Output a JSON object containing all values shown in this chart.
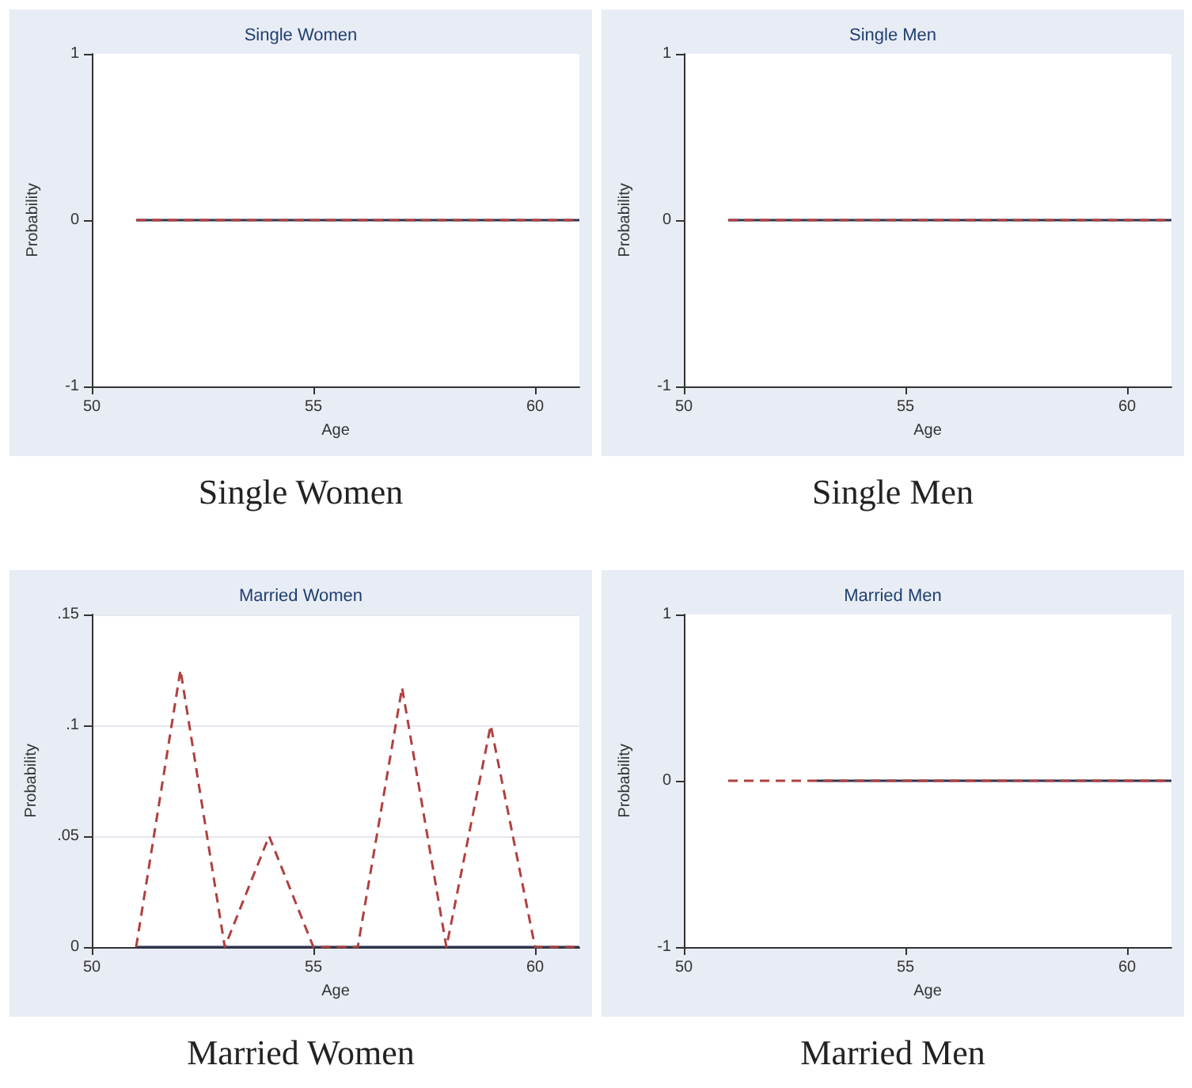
{
  "chart_data": [
    {
      "type": "line",
      "title": "Single Women",
      "xlabel": "Age",
      "ylabel": "Probability",
      "x": [
        51,
        52,
        53,
        54,
        55,
        56,
        57,
        58,
        59,
        60,
        61
      ],
      "xlim": [
        50,
        61
      ],
      "xticks": [
        50,
        55,
        60
      ],
      "ylim": [
        -1,
        1
      ],
      "yticks": [
        -1,
        0,
        1
      ],
      "grid": false,
      "annotations": [
        "Single Women"
      ],
      "series": [
        {
          "color": "#2b3550",
          "line_style": "solid",
          "values": [
            0,
            0,
            0,
            0,
            0,
            0,
            0,
            0,
            0,
            0,
            0
          ]
        },
        {
          "color": "#b04040",
          "line_style": "dashed",
          "values": [
            0,
            0,
            0,
            0,
            0,
            0,
            0,
            0,
            0,
            0,
            0
          ]
        }
      ]
    },
    {
      "type": "line",
      "title": "Single Men",
      "xlabel": "Age",
      "ylabel": "Probability",
      "x": [
        51,
        52,
        53,
        54,
        55,
        56,
        57,
        58,
        59,
        60,
        61
      ],
      "xlim": [
        50,
        61
      ],
      "xticks": [
        50,
        55,
        60
      ],
      "ylim": [
        -1,
        1
      ],
      "yticks": [
        -1,
        0,
        1
      ],
      "grid": false,
      "annotations": [
        "Single Men"
      ],
      "series": [
        {
          "color": "#2b3550",
          "line_style": "solid",
          "values": [
            0,
            0,
            0,
            0,
            0,
            0,
            0,
            0,
            0,
            0,
            0
          ]
        },
        {
          "color": "#b04040",
          "line_style": "dashed",
          "values": [
            0,
            0,
            0,
            0,
            0,
            0,
            0,
            0,
            0,
            0,
            0
          ]
        }
      ]
    },
    {
      "type": "line",
      "title": "Married Women",
      "xlabel": "Age",
      "ylabel": "Probability",
      "x": [
        51,
        52,
        53,
        54,
        55,
        56,
        57,
        58,
        59,
        60,
        61
      ],
      "xlim": [
        50,
        61
      ],
      "xticks": [
        50,
        55,
        60
      ],
      "ylim": [
        0,
        0.15
      ],
      "yticks": [
        0,
        {
          "value": 0.05,
          "label": ".05"
        },
        {
          "value": 0.1,
          "label": ".1"
        },
        {
          "value": 0.15,
          "label": ".15"
        }
      ],
      "grid": "y",
      "annotations": [
        "Married Women"
      ],
      "series": [
        {
          "color": "#2b3550",
          "line_style": "solid",
          "values": [
            0,
            0,
            0,
            0,
            0,
            0,
            0,
            0,
            0,
            0,
            0
          ]
        },
        {
          "color": "#b04040",
          "line_style": "dashed",
          "values": [
            0,
            0.125,
            0,
            0.05,
            0,
            0,
            0.117,
            0,
            0.1,
            0,
            0
          ]
        }
      ]
    },
    {
      "type": "line",
      "title": "Married Men",
      "xlabel": "Age",
      "ylabel": "Probability",
      "x": [
        51,
        52,
        53,
        54,
        55,
        56,
        57,
        58,
        59,
        60,
        61
      ],
      "xlim": [
        50,
        61
      ],
      "xticks": [
        50,
        55,
        60
      ],
      "ylim": [
        -1,
        1
      ],
      "yticks": [
        -1,
        0,
        1
      ],
      "grid": false,
      "annotations": [
        "Married Men"
      ],
      "series": [
        {
          "color": "#2b3550",
          "line_style": "solid",
          "values": [
            null,
            null,
            0,
            0,
            0,
            0,
            0,
            0,
            0,
            0,
            0
          ]
        },
        {
          "color": "#b04040",
          "line_style": "dashed",
          "values": [
            0,
            0,
            0,
            0,
            0,
            0,
            0,
            0,
            0,
            0,
            0
          ]
        }
      ]
    }
  ]
}
